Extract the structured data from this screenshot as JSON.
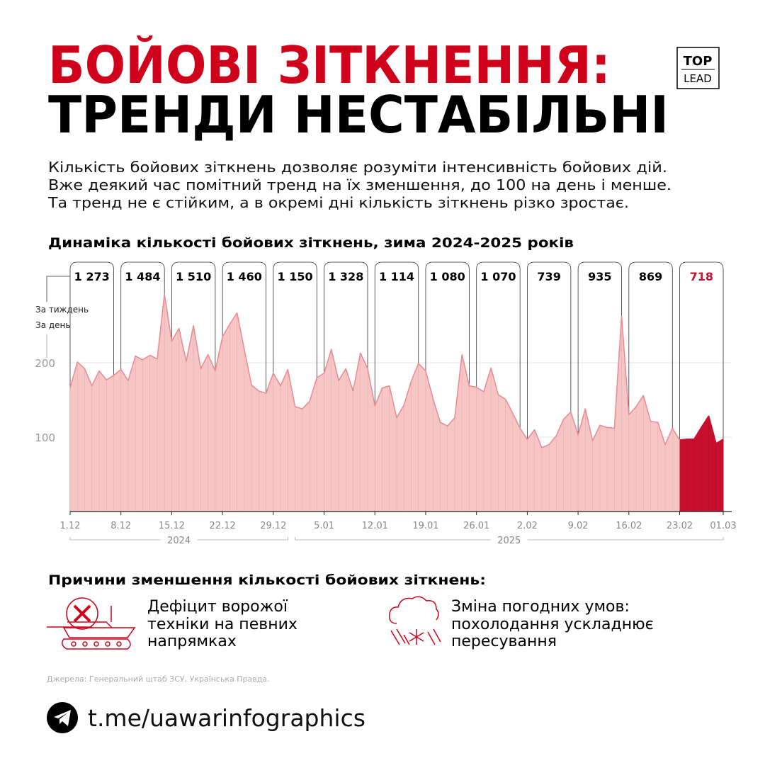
{
  "header": {
    "title_line1": "БОЙОВІ ЗІТКНЕННЯ:",
    "title_line2": "ТРЕНДИ НЕСТАБІЛЬНІ",
    "logo_top": "TOP",
    "logo_bottom": "LEAD"
  },
  "intro": [
    "Кількість бойових зіткнень дозволяє розуміти інтенсивність бойових дій.",
    "Вже деякий час помітний тренд на їх зменшення, до 100 на день і менше.",
    "Та тренд не є стійким, а в окремі дні кількість зіткнень різко зростає."
  ],
  "chart_data": {
    "type": "area",
    "title": "Динаміка кількості бойових зіткнень, зима 2024-2025 років",
    "legend_weekly": "За тиждень",
    "legend_daily": "За день",
    "categories": [
      "1.12",
      null,
      null,
      null,
      null,
      null,
      null,
      "8.12",
      null,
      null,
      null,
      null,
      null,
      null,
      "15.12",
      null,
      null,
      null,
      null,
      null,
      null,
      "22.12",
      null,
      null,
      null,
      null,
      null,
      null,
      "29.12",
      null,
      null,
      null,
      null,
      null,
      null,
      "5.01",
      null,
      null,
      null,
      null,
      null,
      null,
      "12.01",
      null,
      null,
      null,
      null,
      null,
      null,
      "19.01",
      null,
      null,
      null,
      null,
      null,
      null,
      "26.01",
      null,
      null,
      null,
      null,
      null,
      null,
      "2.02",
      null,
      null,
      null,
      null,
      null,
      null,
      "9.02",
      null,
      null,
      null,
      null,
      null,
      null,
      "16.02",
      null,
      null,
      null,
      null,
      null,
      null,
      "23.02",
      null,
      null,
      null,
      null,
      null,
      "01.03"
    ],
    "series": [
      {
        "color": "#e98f93",
        "values": [
          166,
          201,
          192,
          169,
          189,
          177,
          183,
          191,
          176,
          209,
          204,
          210,
          205,
          292,
          229,
          246,
          202,
          250,
          192,
          211,
          189,
          235,
          252,
          267,
          218,
          170,
          162,
          159,
          186,
          169,
          191,
          141,
          138,
          148,
          180,
          186,
          218,
          176,
          192,
          162,
          213,
          192,
          142,
          166,
          169,
          126,
          143,
          175,
          199,
          189,
          152,
          120,
          115,
          126,
          211,
          169,
          167,
          161,
          193,
          157,
          151,
          132,
          112,
          97,
          110,
          86,
          90,
          102,
          124,
          134,
          103,
          138,
          95,
          116,
          113,
          112,
          263,
          130,
          141,
          156,
          121,
          120,
          90,
          112,
          null,
          null,
          null,
          null,
          null,
          null,
          null
        ]
      },
      {
        "color": "#c8102e",
        "values": [
          null,
          null,
          null,
          null,
          null,
          null,
          null,
          null,
          null,
          null,
          null,
          null,
          null,
          null,
          null,
          null,
          null,
          null,
          null,
          null,
          null,
          null,
          null,
          null,
          null,
          null,
          null,
          null,
          null,
          null,
          null,
          null,
          null,
          null,
          null,
          null,
          null,
          null,
          null,
          null,
          null,
          null,
          null,
          null,
          null,
          null,
          null,
          null,
          null,
          null,
          null,
          null,
          null,
          null,
          null,
          null,
          null,
          null,
          null,
          null,
          null,
          null,
          null,
          null,
          null,
          null,
          null,
          null,
          null,
          null,
          null,
          null,
          null,
          null,
          null,
          null,
          null,
          null,
          null,
          null,
          null,
          null,
          null,
          null,
          96,
          97,
          97,
          113,
          128,
          91,
          97
        ]
      }
    ],
    "weekly": {
      "values": [
        1273,
        1484,
        1510,
        1460,
        1150,
        1328,
        1114,
        1080,
        1070,
        739,
        935,
        869,
        718
      ],
      "value_labels": [
        "1 273",
        "1 484",
        "1 510",
        "1 460",
        "1 150",
        "1 328",
        "1 114",
        "1 080",
        "1 070",
        "739",
        "935",
        "869",
        "718"
      ]
    },
    "years": [
      "2024",
      "2025"
    ],
    "ylim": [
      0,
      300
    ],
    "yticks": [
      100,
      200
    ],
    "grid": true
  },
  "reasons": {
    "title": "Причини зменшення кількості бойових зіткнень:",
    "items": [
      [
        "Дефіцит ворожої",
        "техніки на певних",
        "напрямках"
      ],
      [
        "Зміна погодних умов:",
        "похолодання ускладнює",
        "пересування"
      ]
    ]
  },
  "footer": {
    "source": "Джерела: Генеральний штаб ЗСУ, Українська Правда.",
    "link": "t.me/uawarinfographics"
  }
}
